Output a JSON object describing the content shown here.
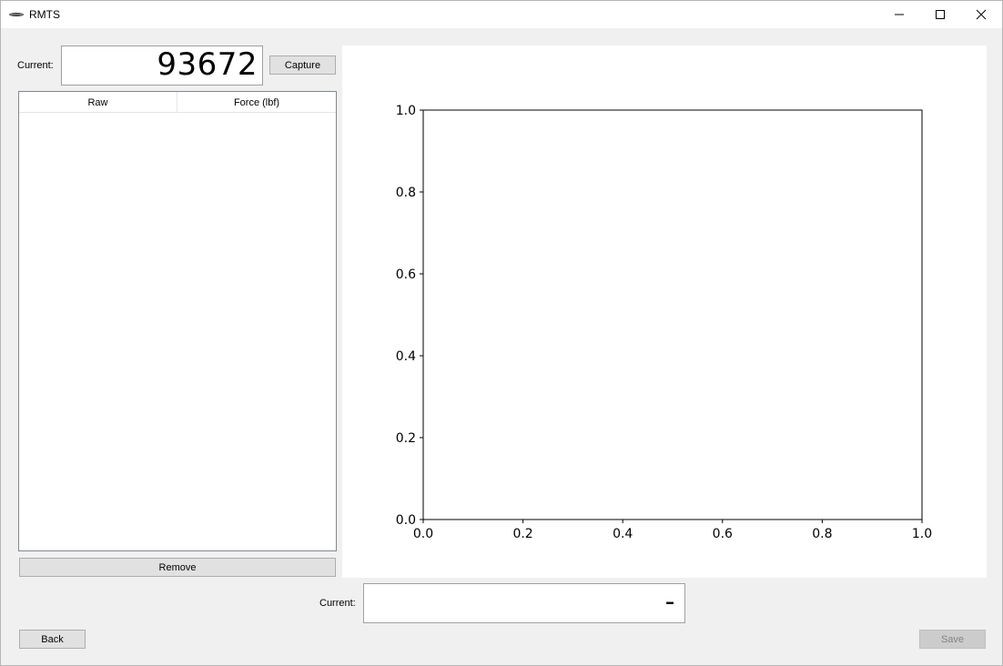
{
  "window": {
    "title": "RMTS",
    "controls": {
      "minimize": "minimize-icon",
      "maximize": "maximize-icon",
      "close": "close-icon"
    }
  },
  "capture_panel": {
    "current_label": "Current:",
    "current_value": "93672",
    "capture_button": "Capture"
  },
  "table": {
    "columns": [
      "Raw",
      "Force (lbf)"
    ],
    "rows": []
  },
  "remove_button": "Remove",
  "bottom": {
    "current_label": "Current:",
    "current_value": "-",
    "back_button": "Back",
    "save_button": "Save"
  },
  "chart_data": {
    "type": "line",
    "series": [],
    "xlim": [
      0.0,
      1.0
    ],
    "ylim": [
      0.0,
      1.0
    ],
    "xticks": [
      "0.0",
      "0.2",
      "0.4",
      "0.6",
      "0.8",
      "1.0"
    ],
    "yticks": [
      "0.0",
      "0.2",
      "0.4",
      "0.6",
      "0.8",
      "1.0"
    ],
    "title": "",
    "xlabel": "",
    "ylabel": "",
    "grid": false
  }
}
